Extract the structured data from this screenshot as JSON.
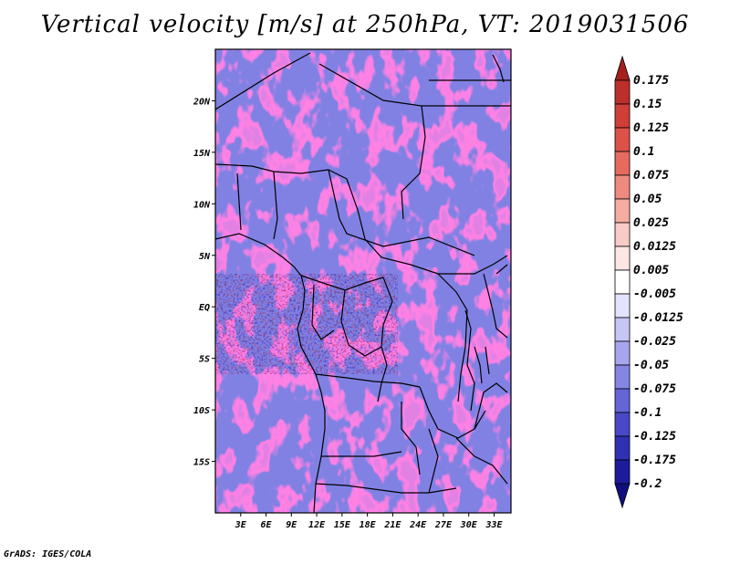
{
  "title": "Vertical velocity [m/s] at 250hPa, VT: 2019031506",
  "credit": "GrADS: IGES/COLA",
  "map": {
    "variable": "Vertical velocity",
    "units": "m/s",
    "level": "250hPa",
    "valid_time": "2019031506",
    "lon_range": [
      0,
      35
    ],
    "lat_range": [
      -20,
      25
    ],
    "lat_ticks": [
      {
        "value": 20,
        "label": "20N"
      },
      {
        "value": 15,
        "label": "15N"
      },
      {
        "value": 10,
        "label": "10N"
      },
      {
        "value": 5,
        "label": "5N"
      },
      {
        "value": 0,
        "label": "EQ"
      },
      {
        "value": -5,
        "label": "5S"
      },
      {
        "value": -10,
        "label": "10S"
      },
      {
        "value": -15,
        "label": "15S"
      }
    ],
    "lon_ticks": [
      {
        "value": 3,
        "label": "3E"
      },
      {
        "value": 6,
        "label": "6E"
      },
      {
        "value": 9,
        "label": "9E"
      },
      {
        "value": 12,
        "label": "12E"
      },
      {
        "value": 15,
        "label": "15E"
      },
      {
        "value": 18,
        "label": "18E"
      },
      {
        "value": 21,
        "label": "21E"
      },
      {
        "value": 24,
        "label": "24E"
      },
      {
        "value": 27,
        "label": "27E"
      },
      {
        "value": 30,
        "label": "30E"
      },
      {
        "value": 33,
        "label": "33E"
      }
    ]
  },
  "colorbar": {
    "labels": [
      "0.175",
      "0.15",
      "0.125",
      "0.1",
      "0.075",
      "0.05",
      "0.025",
      "0.0125",
      "0.005",
      "-0.005",
      "-0.0125",
      "-0.025",
      "-0.05",
      "-0.075",
      "-0.1",
      "-0.125",
      "-0.175",
      "-0.2"
    ],
    "colors": [
      "#a51f1f",
      "#bd2f2a",
      "#cf3e37",
      "#dc5148",
      "#e76a5f",
      "#ef8a80",
      "#f5aca3",
      "#f9cbc6",
      "#fde6e4",
      "#ffffff",
      "#e3e3fb",
      "#c6c6f5",
      "#a6a6ee",
      "#8585e4",
      "#6565d8",
      "#4848c8",
      "#3030b4",
      "#1c1c9a",
      "#0f0f80"
    ]
  }
}
